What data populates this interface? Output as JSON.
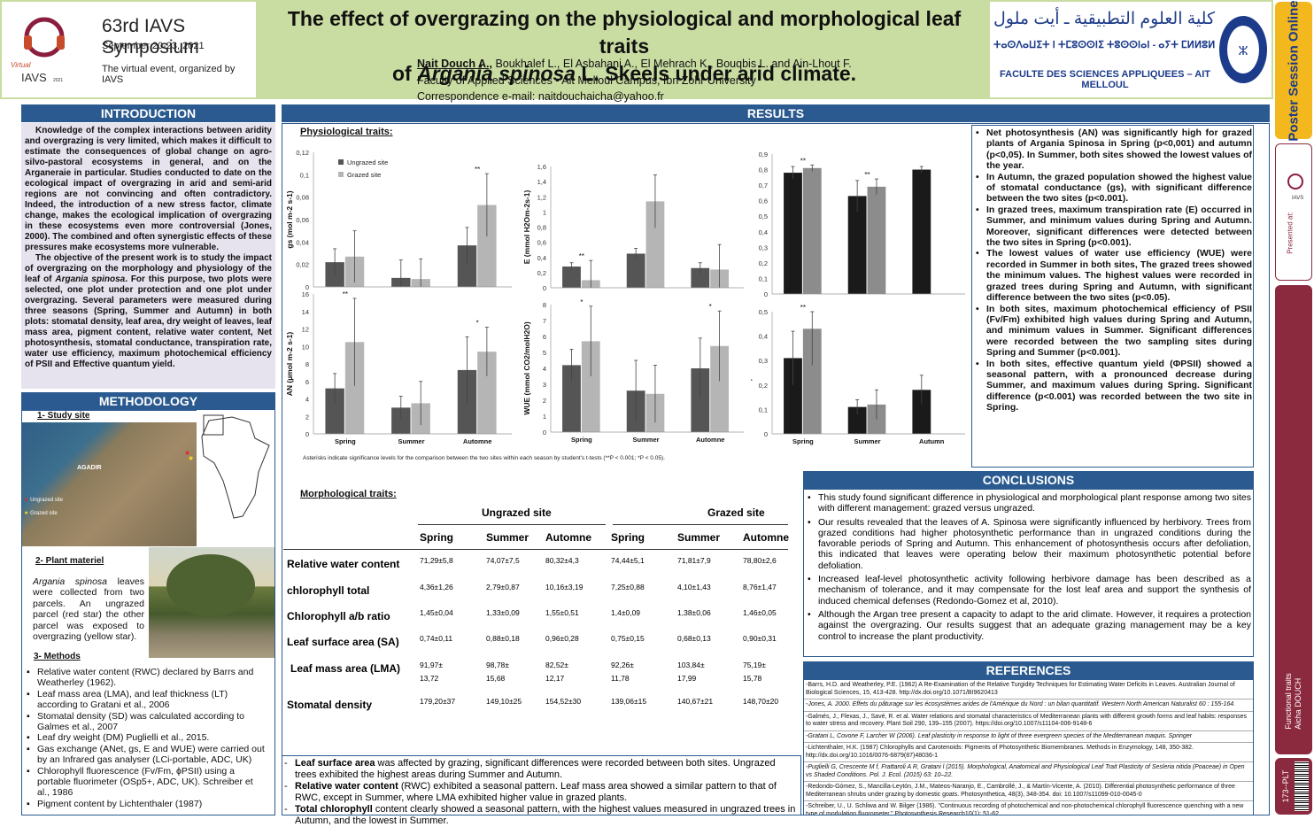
{
  "header": {
    "symposium": "63rd IAVS Symposium",
    "dates": "September 20-23, 2021",
    "event": "The virtual event, organized by IAVS",
    "logo_text": "Virtual IAVS 2021",
    "title1": "The effect of overgrazing on the physiological and morphological leaf traits",
    "title2a": "of ",
    "title2b": "Argania spinosa",
    "title2c": " L. Skeels under arid climate.",
    "lead_author": "Nait Douch A.,",
    "authors": " Boukhalef L., El Asbahani A., El Mehrach K., Bouqbis L. and Ain-Lhout F.",
    "affil": "Faculty of Applied Sciences - Ait Melloul Campus, Ibn Zohr University",
    "email": "Correspondence e-mail: naitdouchaicha@yahoo.fr",
    "univ_arabic": "كلية العلوم التطبيقية ـ أيت ملول",
    "univ_tifinagh": "ⵜⴰⵙⴷⴰⵡⵉⵜ ⵏ ⵜⵎⵓⵙⵙⵏⵉ ⵜⵓⵙⵙⵏⴰⵏ - ⴰⵢⵜ ⵎⵍⵍⵓⵍ",
    "univ_french": "FACULTE DES SCIENCES APPLIQUEES – AIT MELLOUL"
  },
  "sidebar": {
    "poster_session": "Poster Session Online",
    "presented_at": "Presented at:",
    "author_tag": "Functional traits\nAicha DOUCH",
    "code": "173--PLT"
  },
  "intro": {
    "heading": "INTRODUCTION",
    "p1": "Knowledge of the complex interactions between aridity and overgrazing is very limited, which makes it difficult to estimate the consequences of global change on agro-silvo-pastoral ecosystems in general, and on the Arganeraie in particular. Studies conducted to date on the ecological impact of overgrazing in arid and semi-arid regions are not convincing and often contradictory. Indeed, the introduction of a new stress factor, climate change, makes the ecological implication of overgrazing in these ecosystems even more controversial (Jones, 2000). The combined and often synergistic effects of these pressures make ecosystems more vulnerable.",
    "p2a": "The objective of the present work is to study the impact of overgrazing on the morphology and physiology of the leaf of ",
    "p2b": "Argania spinosa",
    "p2c": ". For this purpose, two plots were selected, one plot under protection and one plot under overgrazing. Several parameters were measured during three seasons (Spring, Summer and Autumn) in both plots: stomatal density, leaf area, dry weight of leaves, leaf mass area, pigment content, relative water content, Net photosynthesis, stomatal conductance, transpiration rate, water use efficiency, maximum photochemical efficiency of PSII and Effective quantum yield."
  },
  "method": {
    "heading": "METHODOLOGY",
    "s1": "1- Study site",
    "map_city": "AGADIR",
    "map_leg1": "Ungrazed site",
    "map_leg2": "Grazed site",
    "s2": "2- Plant materiel",
    "plant_a": "Argania spinosa",
    "plant_b": " leaves were collected from two parcels. An ungrazed parcel (red star) the other parcel was exposed to overgrazing (yellow star).",
    "s3": "3- Methods",
    "methods": [
      "Relative water content (RWC) declared by Barrs and Weatherley (1962).",
      "Leaf mass area (LMA), and leaf thickness (LT) according to Gratani et al., 2006",
      "Stomatal density (SD) was calculated according to Galmes et al., 2007",
      "Leaf dry weight (DM) Puglielli et al., 2015.",
      "Gas exchange (ANet, gs, E and WUE) were carried out by an Infrared gas analyser (LCi-portable, ADC, UK)",
      "Chlorophyll fluorescence (Fv/Fm, ϕPSII) using a portable fluorimeter (OSp5+, ADC, UK). Schreiber et al., 1986",
      "Pigment content by Lichtenthaler (1987)"
    ]
  },
  "results": {
    "heading": "RESULTS",
    "phys": "Physiological traits:",
    "morph": "Morphological traits:",
    "asterisk_note": "Asterisks indicate significance levels for the comparison between the two sites within each season by student's t-tests (**P < 0.001; *P < 0.05).",
    "bullets": [
      "Net photosynthesis (AN) was significantly high for grazed plants of Argania Spinosa in Spring (p<0,001) and autumn (p<0,05). In Summer, both sites showed the lowest values of the year.",
      "In Autumn, the grazed population showed the highest value of stomatal conductance (gs), with significant difference between the two sites (p<0.001).",
      "In grazed trees, maximum transpiration rate (E) occurred in Summer, and minimum values during Spring and Autumn. Moreover, significant differences were detected between the two sites in Spring (p<0.001).",
      "The lowest values of water use efficiency (WUE) were recorded in Summer in both sites, The grazed trees showed the minimum values. The highest values were recorded in grazed trees during Spring and Autumn, with significant difference between the two sites (p<0.05).",
      "In both sites, maximum photochemical efficiency of PSII (Fv/Fm) exhibited high values during Spring and Autumn, and minimum values in Summer. Significant differences were recorded between the two sampling sites during Spring and Summer (p<0.001).",
      "In both sites, effective quantum yield (ΦPSII) showed a seasonal pattern, with a pronounced decrease during Summer, and maximum values during Spring. Significant difference (p<0.001) was recorded between the two site in Spring."
    ],
    "morph_notes": [
      {
        "b": "Leaf surface area",
        "t": " was affected by grazing, significant differences were recorded between both sites. Ungrazed trees exhibited the highest areas during Summer and Autumn."
      },
      {
        "b": "Relative water content",
        "t": " (RWC) exhibited a seasonal pattern. Leaf mass area showed a similar pattern to that of RWC, except in Summer, where LMA exhibited higher value in grazed plants."
      },
      {
        "b": "Total chlorophyll",
        "t": " content clearly showed a seasonal pattern, with the highest values measured in ungrazed trees in Autumn, and the lowest in Summer."
      }
    ]
  },
  "table": {
    "group1": "Ungrazed site",
    "group2": "Grazed site",
    "cols": [
      "Spring",
      "Summer",
      "Automne",
      "Spring",
      "Summer",
      "Automne"
    ],
    "rows": [
      {
        "label": "Relative water content",
        "v": [
          "71,29±5,8",
          "74,07±7,5",
          "80,32±4,3",
          "74,44±5,1",
          "71,81±7,9",
          "78,80±2,6"
        ]
      },
      {
        "label": "chlorophyll total",
        "v": [
          "4,36±1,26",
          "2,79±0,87",
          "10,16±3,19",
          "7,25±0,88",
          "4,10±1,43",
          "8,76±1,47"
        ]
      },
      {
        "label": "Chlorophyll a/b ratio",
        "v": [
          "1,45±0,04",
          "1,33±0,09",
          "1,55±0,51",
          "1,4±0,09",
          "1,38±0,06",
          "1,46±0,05"
        ]
      },
      {
        "label": "Leaf surface area (SA)",
        "v": [
          "0,74±0,11",
          "0,88±0,18",
          "0,96±0,28",
          "0,75±0,15",
          "0,68±0,13",
          "0,90±0,31"
        ]
      },
      {
        "label": "Leaf mass area (LMA)",
        "v": [
          "91,97± 13,72",
          "98,78± 15,68",
          "82,52± 12,17",
          "92,26± 11,78",
          "103,84± 17,99",
          "75,19± 15,78"
        ]
      },
      {
        "label": "Stomatal density",
        "v": [
          "179,20±37",
          "149,10±25",
          "154,52±30",
          "139,06±15",
          "140,67±21",
          "148,70±20"
        ]
      }
    ]
  },
  "conclusions": {
    "heading": "CONCLUSIONS",
    "items": [
      "This study found significant difference in physiological and morphological plant response among two sites with different management: grazed versus ungrazed.",
      "Our results revealed that the leaves of A. Spinosa were significantly influenced by herbivory. Trees from grazed conditions had higher photosynthetic performance than in ungrazed conditions during the favorable periods of Spring and Autumn. This enhancement of photosynthesis occurs after defoliation, this indicated that leaves were operating below their maximum photosynthetic potential before defoliation.",
      "Increased leaf-level photosynthetic activity following herbivore damage has been described as a mechanism of tolerance, and it may compensate for the lost leaf area and support the synthesis of induced chemical defenses (Redondo-Gomez et al, 2010).",
      "Although the Argan tree present a capacity to adapt to the arid climate. However, it requires a protection against the overgrazing. Our results suggest that an adequate grazing management may be a key control to increase the plant productivity."
    ]
  },
  "references": {
    "heading": "REFERENCES",
    "items": [
      "-Barrs, H.D. and Weatherley, P.E. (1962) A Re-Examination of the Relative Turgidity Techniques for Estimating Water Deficits in Leaves. Australian Journal of Biological Sciences, 15, 413-428. http://dx.doi.org/10.1071/BI9620413",
      "-Jones, A. 2000. Effets du pâturage sur les écosystèmes arides de l'Amérique du Nord : un bilan quantitatif. Western North American Naturalist 60 : 155-164.",
      "-Galmés, J., Flexas, J., Savé, R. et al. Water relations and stomatal characteristics of Mediterranean plants with different growth forms and leaf habits: responses to water stress and recovery. Plant Soil 290, 139–155 (2007). https://doi.org/10.1007/s11104-006-9148-6",
      "-Gratani L, Covone F, Larcher W (2006). Leaf plasticity in response to light of three evergreen species of the Mediterranean maquis. Springer",
      "-Lichtenthaler, H.K. (1987) Chlorophylls and Carotenoids: Pigments of Photosynthetic Biomembranes. Methods in Enzymology, 148, 350-382. http://dx.doi.org/10.1016/0076-6879(87)48036-1",
      "-Puglielli G, Crescente M f, Frattaroli A R, Gratani l (2015). Morphological, Anatomical and Physiological Leaf Trait Plasticity of Sesleria nitida (Poaceae) in Open vs Shaded Conditions. Pol. J. Ecol. (2015) 63: 10–22.",
      "-Redondo-Gómez, S., Mancilla-Leytón, J.M., Mateos-Naranjo, E., Cambrollé, J., & Martín-Vicente, A. (2010). Differential photosynthetic performance of three Mediterranean shrubs under grazing by domestic goats. Photosynthetica, 48(3), 348-354. doi: 10.1007/s11099-010-0045-0",
      "-Schreiber, U., U. Schliwa and W. Bilger (1986). \"Continuous recording of photochemical and non-photochemical chlorophyll fluorescence quenching with a new type of modulation fluorometer.\" Photosynthesis Research10(1): 51-62."
    ]
  },
  "chart_data": [
    {
      "type": "bar",
      "id": "gs",
      "ylabel": "gs (mol m-2 s-1)",
      "ylim": [
        0,
        0.12
      ],
      "ticks": [
        "0",
        "0,02",
        "0,04",
        "0,06",
        "0,08",
        "0,1",
        "0,12"
      ],
      "categories": [
        "Spring",
        "Summer",
        "Automne"
      ],
      "series": [
        {
          "name": "Ungrazed site",
          "values": [
            0.022,
            0.008,
            0.037
          ],
          "err": [
            0.012,
            0.016,
            0.016
          ]
        },
        {
          "name": "Grazed site",
          "values": [
            0.027,
            0.007,
            0.073
          ],
          "err": [
            0.023,
            0.018,
            0.028
          ]
        }
      ],
      "sig": [
        "",
        "",
        "**"
      ],
      "colors": [
        "#555555",
        "#b5b5b5"
      ]
    },
    {
      "type": "bar",
      "id": "E",
      "ylabel": "E (mmol H2Om-2s-1)",
      "ylim": [
        0,
        1.6
      ],
      "ticks": [
        "0",
        "0,2",
        "0,4",
        "0,6",
        "0,8",
        "1",
        "1,2",
        "1,4",
        "1,6"
      ],
      "categories": [
        "Spring",
        "Summer",
        "Automne"
      ],
      "series": [
        {
          "name": "Ungrazed site",
          "values": [
            0.28,
            0.45,
            0.26
          ],
          "err": [
            0.05,
            0.07,
            0.07
          ]
        },
        {
          "name": "Grazed site",
          "values": [
            0.1,
            1.14,
            0.24
          ],
          "err": [
            0.26,
            0.35,
            0.33
          ]
        }
      ],
      "sig": [
        "**",
        "",
        ""
      ],
      "colors": [
        "#555555",
        "#b5b5b5"
      ]
    },
    {
      "type": "bar",
      "id": "fvfm",
      "ylabel": "Fv/Fm",
      "ylim": [
        0,
        0.9
      ],
      "ticks": [
        "0",
        "0,1",
        "0,2",
        "0,3",
        "0,4",
        "0,5",
        "0,6",
        "0,7",
        "0,8",
        "0,9"
      ],
      "categories": [
        "Spring",
        "Summer",
        "Automne"
      ],
      "series": [
        {
          "name": "Ungrazed site",
          "values": [
            0.78,
            0.63,
            0.8
          ],
          "err": [
            0.04,
            0.1,
            0.02
          ]
        },
        {
          "name": "Grazed site",
          "values": [
            0.81,
            0.69,
            null
          ],
          "err": [
            0.02,
            0.05,
            0
          ]
        }
      ],
      "sig": [
        "**",
        "**",
        ""
      ],
      "colors": [
        "#1a1a1a",
        "#8c8c8c"
      ]
    },
    {
      "type": "bar",
      "id": "AN",
      "ylabel": "AN (µmol m-2 s-1)",
      "ylim": [
        0,
        16
      ],
      "ticks": [
        "0",
        "2",
        "4",
        "6",
        "8",
        "10",
        "12",
        "14",
        "16"
      ],
      "categories": [
        "Spring",
        "Summer",
        "Automne"
      ],
      "series": [
        {
          "name": "Ungrazed site",
          "values": [
            5.2,
            3.0,
            7.3
          ],
          "err": [
            1.7,
            1.3,
            3.8
          ]
        },
        {
          "name": "Grazed site",
          "values": [
            10.5,
            3.5,
            9.4
          ],
          "err": [
            5.0,
            2.5,
            2.8
          ]
        }
      ],
      "sig": [
        "**",
        "",
        "*"
      ],
      "colors": [
        "#555555",
        "#b5b5b5"
      ]
    },
    {
      "type": "bar",
      "id": "WUE",
      "ylabel": "WUE (mmol CO2/molH2O)",
      "ylim": [
        0,
        8
      ],
      "ticks": [
        "0",
        "1",
        "2",
        "3",
        "4",
        "5",
        "6",
        "7",
        "8"
      ],
      "categories": [
        "Spring",
        "Summer",
        "Automne"
      ],
      "series": [
        {
          "name": "Ungrazed site",
          "values": [
            4.2,
            2.6,
            4.0
          ],
          "err": [
            1.0,
            1.9,
            1.9
          ]
        },
        {
          "name": "Grazed site",
          "values": [
            5.7,
            2.4,
            5.4
          ],
          "err": [
            2.2,
            1.8,
            2.2
          ]
        }
      ],
      "sig": [
        "*",
        "",
        "*"
      ],
      "colors": [
        "#555555",
        "#b5b5b5"
      ]
    },
    {
      "type": "bar",
      "id": "phipsii",
      "ylabel": "φPSII",
      "ylim": [
        0,
        0.5
      ],
      "ticks": [
        "0",
        "0,1",
        "0,2",
        "0,3",
        "0,4",
        "0,5"
      ],
      "categories": [
        "Spring",
        "Summer",
        "Autumn"
      ],
      "series": [
        {
          "name": "Ungrazed site",
          "values": [
            0.31,
            0.11,
            0.18
          ],
          "err": [
            0.11,
            0.03,
            0.06
          ]
        },
        {
          "name": "Grazed site",
          "values": [
            0.43,
            0.12,
            null
          ],
          "err": [
            0.15,
            0.06,
            0
          ]
        }
      ],
      "sig": [
        "**",
        "",
        ""
      ],
      "colors": [
        "#1a1a1a",
        "#8c8c8c"
      ]
    }
  ]
}
